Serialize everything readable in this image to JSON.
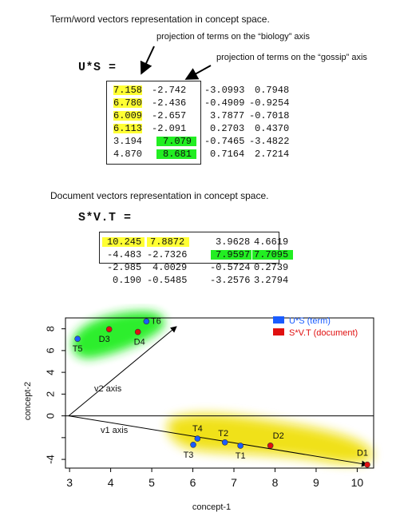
{
  "heading1": "Term/word vectors representation in concept space.",
  "note_biology": "projection of terms on the “biology” axis",
  "note_gossip": "projection of terms on the “gossip” axis",
  "us_label": "U*S =",
  "us_matrix": [
    [
      "7.158",
      "-2.742",
      "-3.0993",
      "0.7948"
    ],
    [
      "6.780",
      "-2.436",
      "-0.4909",
      "-0.9254"
    ],
    [
      "6.009",
      "-2.657",
      "3.7877",
      "-0.7018"
    ],
    [
      "6.113",
      "-2.091",
      "0.2703",
      "0.4370"
    ],
    [
      "3.194",
      "7.079",
      "-0.7465",
      "-3.4822"
    ],
    [
      "4.870",
      "8.681",
      "0.7164",
      "2.7214"
    ]
  ],
  "heading2": "Document vectors representation in concept space.",
  "svt_label": "S*V.T =",
  "svt_matrix": [
    [
      "10.245",
      "7.8872",
      "3.9628",
      "4.6619"
    ],
    [
      "-4.483",
      "-2.7326",
      "7.9597",
      "7.7095"
    ],
    [
      "-2.985",
      "4.0029",
      "-0.5724",
      "0.2739"
    ],
    [
      "0.190",
      "-0.5485",
      "-3.2576",
      "3.2794"
    ]
  ],
  "chart_data": {
    "type": "scatter",
    "xlabel": "concept-1",
    "ylabel": "concept-2",
    "xlim": [
      2.9,
      10.4
    ],
    "ylim": [
      -4.8,
      9.0
    ],
    "xticks": [
      "3",
      "4",
      "5",
      "6",
      "7",
      "8",
      "9",
      "10"
    ],
    "yticks": [
      "-4",
      "",
      "0",
      "2",
      "4",
      "6",
      "8"
    ],
    "legend_position": "top-right",
    "series": [
      {
        "name": "U*S (term)",
        "color": "#1a5cff",
        "points": [
          {
            "label": "T1",
            "x": 7.158,
            "y": -2.742
          },
          {
            "label": "T2",
            "x": 6.78,
            "y": -2.436
          },
          {
            "label": "T3",
            "x": 6.009,
            "y": -2.657
          },
          {
            "label": "T4",
            "x": 6.113,
            "y": -2.091
          },
          {
            "label": "T5",
            "x": 3.194,
            "y": 7.079
          },
          {
            "label": "T6",
            "x": 4.87,
            "y": 8.681
          }
        ]
      },
      {
        "name": "S*V.T (document)",
        "color": "#e01010",
        "points": [
          {
            "label": "D1",
            "x": 10.245,
            "y": -4.483
          },
          {
            "label": "D2",
            "x": 7.8872,
            "y": -2.7326
          },
          {
            "label": "D3",
            "x": 3.9628,
            "y": 7.9597
          },
          {
            "label": "D4",
            "x": 4.6619,
            "y": 7.7095
          }
        ]
      }
    ],
    "annotations": [
      {
        "text": "v2 axis",
        "arrow_to": [
          5.6,
          8.2
        ]
      },
      {
        "text": "v1 axis",
        "arrow_to": [
          10.245,
          -4.483
        ]
      }
    ]
  }
}
